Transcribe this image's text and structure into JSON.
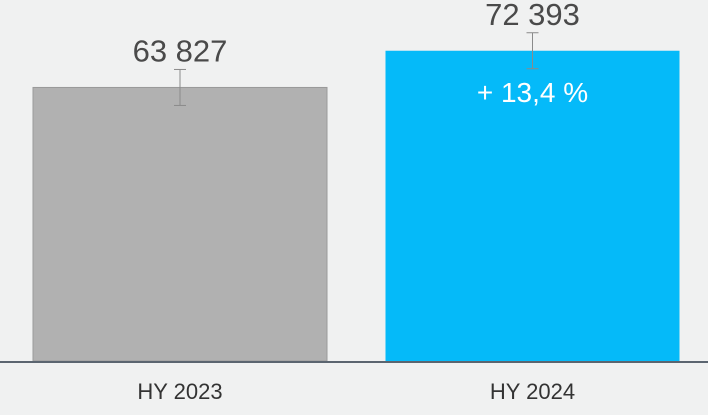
{
  "chart_data": {
    "type": "bar",
    "categories": [
      "HY 2023",
      "HY 2024"
    ],
    "values": [
      63827,
      72393
    ],
    "value_labels": [
      "63 827",
      "72 393"
    ],
    "errors": [
      4200,
      4200
    ],
    "colors": [
      "#b1b1b1",
      "#05baf9"
    ],
    "annotation": "+ 13,4 %",
    "ylim": [
      0,
      84000
    ]
  }
}
